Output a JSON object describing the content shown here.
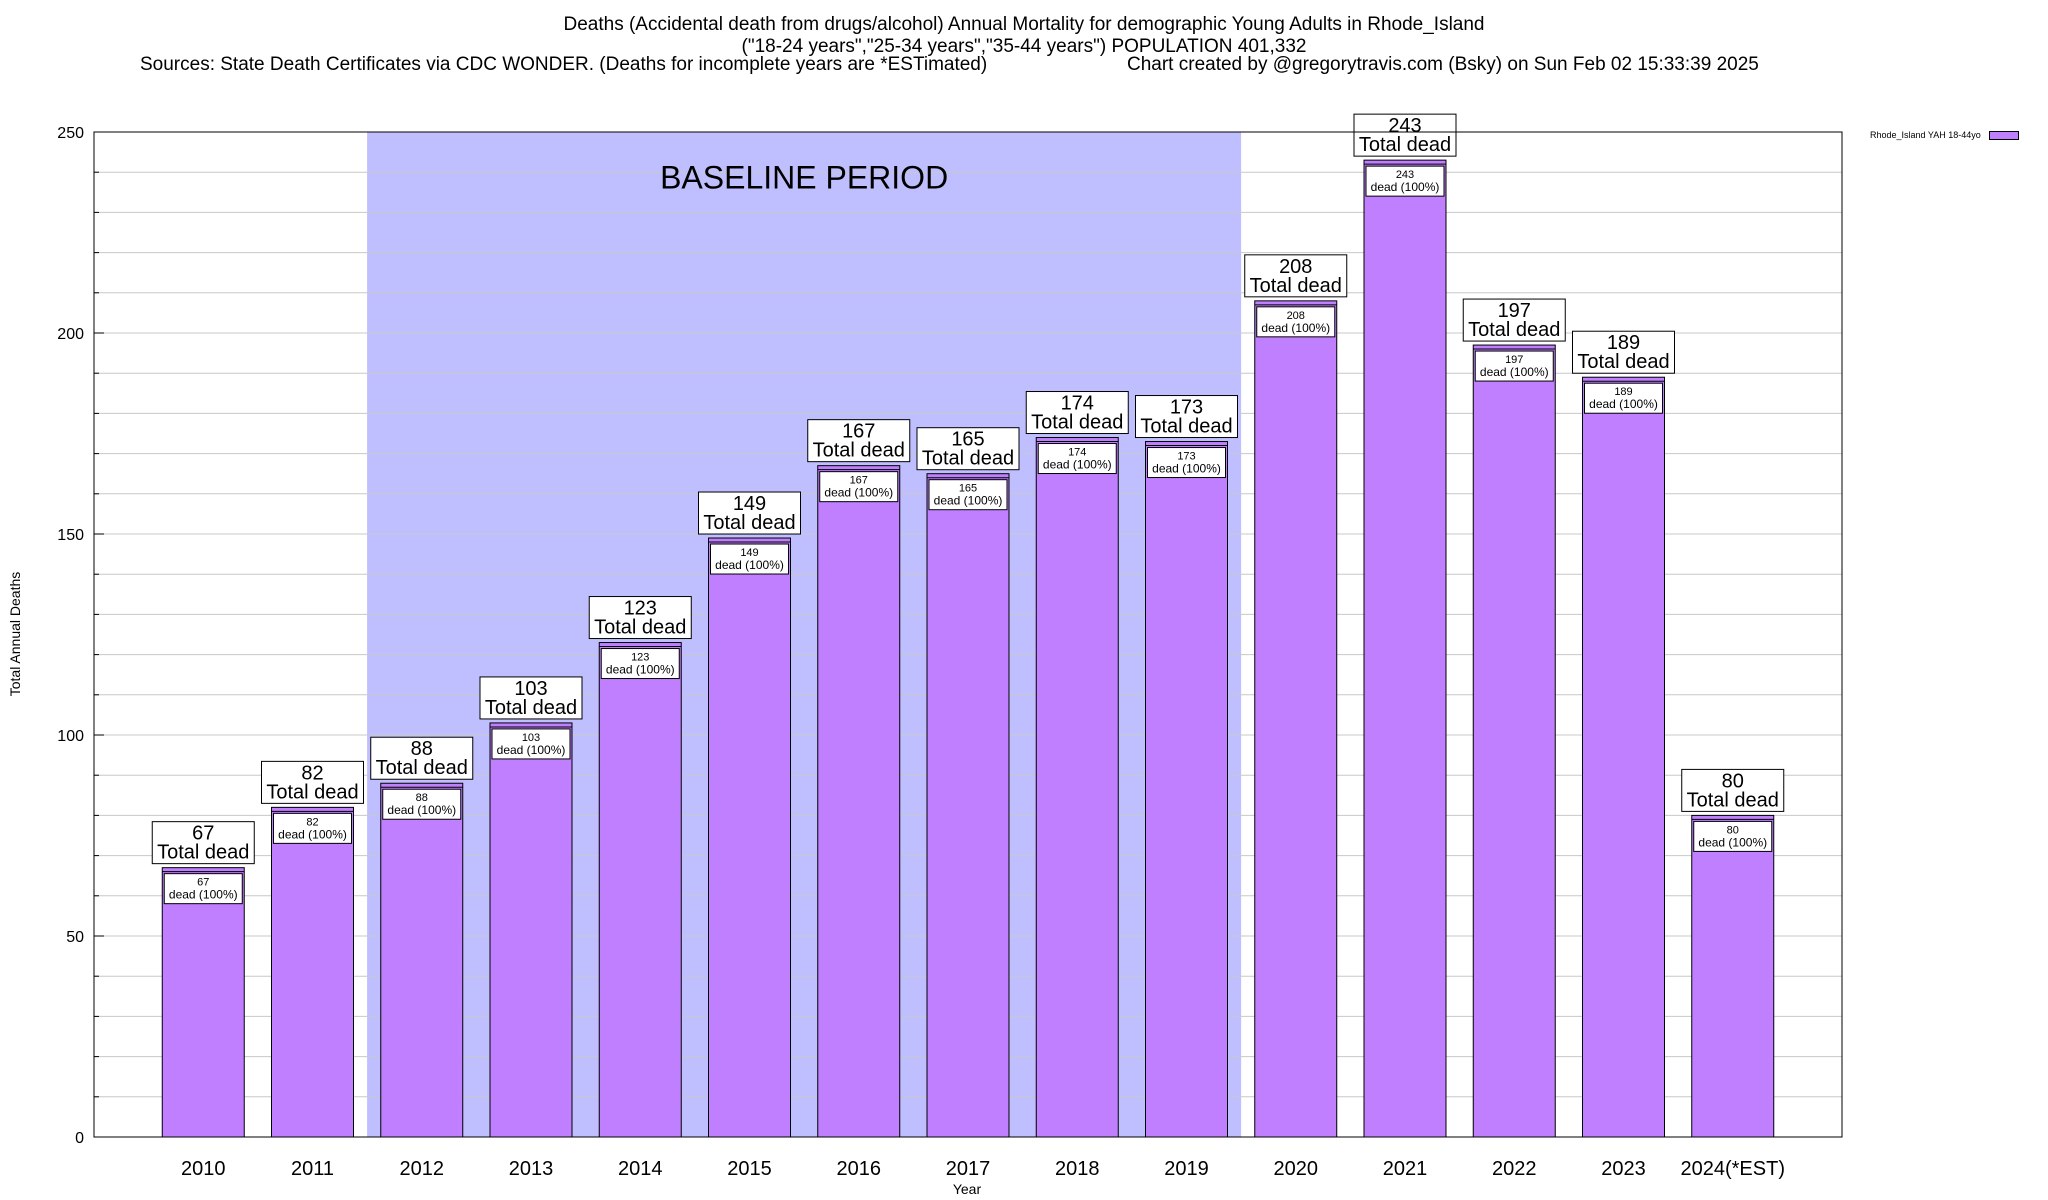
{
  "header": {
    "line1": "Deaths (Accidental death from drugs/alcohol) Annual Mortality for demographic Young Adults in Rhode_Island",
    "line2": "(\"18-24 years\",\"25-34 years\",\"35-44 years\") POPULATION 401,332",
    "line3": "Sources: State Death Certificates via CDC WONDER. (Deaths for incomplete years are *ESTimated)",
    "line4": "Chart created by @gregorytravis.com (Bsky) on Sun Feb 02 15:33:39 2025"
  },
  "chart_data": {
    "type": "bar",
    "categories": [
      "2010",
      "2011",
      "2012",
      "2013",
      "2014",
      "2015",
      "2016",
      "2017",
      "2018",
      "2019",
      "2020",
      "2021",
      "2022",
      "2023",
      "2024(*EST)"
    ],
    "series": [
      {
        "name": "Rhode_Island YAH 18-44yo",
        "values": [
          67,
          82,
          88,
          103,
          123,
          149,
          167,
          165,
          174,
          173,
          208,
          243,
          197,
          189,
          80
        ]
      }
    ],
    "xlabel": "Year",
    "ylabel": "Total Annual Deaths",
    "ylim": [
      0,
      250
    ],
    "yticks": [
      0,
      50,
      100,
      150,
      200,
      250
    ],
    "grid": true,
    "legend_position": "top-right",
    "baseline_region": {
      "label": "BASELINE PERIOD",
      "from_category": "2012",
      "to_category": "2019"
    },
    "total_label_suffix": "Total dead",
    "inner_label_suffix": "dead (100%)",
    "colors": {
      "bar": "#bf7fff",
      "baseline": "#bfbfff",
      "grid": "#c8c8c8"
    }
  }
}
